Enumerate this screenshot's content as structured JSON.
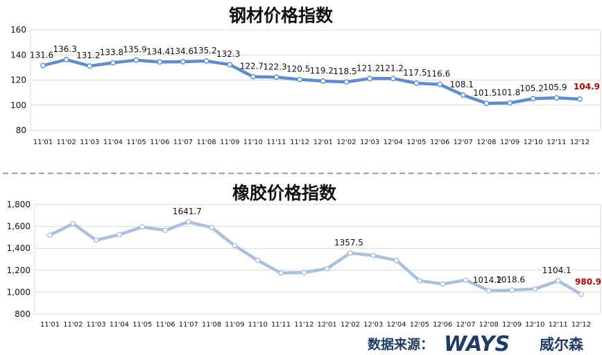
{
  "source": {
    "label": "数据来源：",
    "logo_text": "WAYS",
    "logo_cn": "威尔森"
  },
  "chart_data": [
    {
      "type": "line",
      "title": "钢材价格指数",
      "categories": [
        "11'01",
        "11'02",
        "11'03",
        "11'04",
        "11'05",
        "11'06",
        "11'07",
        "11'08",
        "11'09",
        "11'10",
        "11'11",
        "11'12",
        "12'01",
        "12'02",
        "12'03",
        "12'04",
        "12'05",
        "12'06",
        "12'07",
        "12'08",
        "12'09",
        "12'10",
        "12'11",
        "12'12"
      ],
      "series": [
        {
          "values": [
            131.6,
            136.3,
            131.2,
            133.8,
            135.9,
            134.4,
            134.6,
            135.2,
            132.3,
            122.7,
            122.3,
            120.5,
            119.2,
            118.5,
            121.2,
            121.2,
            117.5,
            116.6,
            108.1,
            101.5,
            101.8,
            105.2,
            105.9,
            104.9
          ]
        }
      ],
      "data_labels": [
        "131.6",
        "136.3",
        "131.2",
        "133.8",
        "135.9",
        "134.4",
        "134.6",
        "135.2",
        "132.3",
        "122.7",
        "122.3",
        "120.5",
        "119.2",
        "118.5",
        "121.2",
        "121.2",
        "117.5",
        "116.6",
        "108.1",
        "101.5",
        "101.8",
        "105.2",
        "105.9",
        "104.9"
      ],
      "ylim": [
        80,
        160
      ],
      "yticks": [
        "80",
        "100",
        "120",
        "140",
        "160"
      ],
      "grid": true,
      "line_color": "#5b8ed1",
      "highlight_color": "#c00000"
    },
    {
      "type": "line",
      "title": "橡胶价格指数",
      "categories": [
        "11'01",
        "11'02",
        "11'03",
        "11'04",
        "11'05",
        "11'06",
        "11'07",
        "11'08",
        "11'09",
        "11'10",
        "11'11",
        "11'12",
        "12'01",
        "12'02",
        "12'03",
        "12'04",
        "12'05",
        "12'06",
        "12'07",
        "12'08",
        "12'09",
        "12'10",
        "12'11",
        "12'12"
      ],
      "series": [
        {
          "values": [
            1520,
            1625,
            1475,
            1525,
            1595,
            1565,
            1641.7,
            1590,
            1425,
            1290,
            1175,
            1180,
            1215,
            1357.5,
            1335,
            1290,
            1105,
            1075,
            1110,
            1014.2,
            1018.6,
            1030,
            1104.1,
            980.9
          ]
        }
      ],
      "data_labels": [
        "",
        "",
        "",
        "",
        "",
        "",
        "1641.7",
        "",
        "",
        "",
        "",
        "",
        "",
        "1357.5",
        "",
        "",
        "",
        "",
        "",
        "1014.2",
        "1018.6",
        "",
        "1104.1",
        "980.9"
      ],
      "ylim": [
        800,
        1800
      ],
      "yticks": [
        "800",
        "1,000",
        "1,200",
        "1,400",
        "1,600",
        "1,800"
      ],
      "grid": true,
      "line_color": "#a9c0e0",
      "highlight_color": "#c00000"
    }
  ]
}
